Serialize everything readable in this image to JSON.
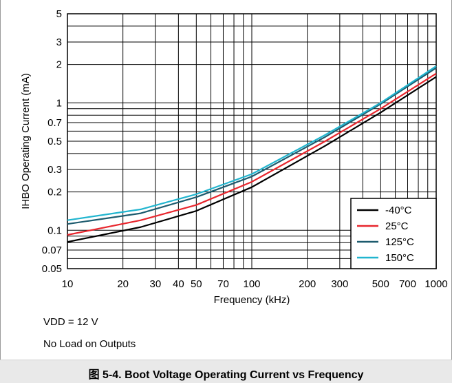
{
  "chart_data": {
    "type": "line",
    "xlabel": "Frequency (kHz)",
    "ylabel": "IHBO Operating Current (mA)",
    "xscale": "log",
    "yscale": "log",
    "xlim": [
      10,
      1000
    ],
    "ylim": [
      0.05,
      5
    ],
    "grid": true,
    "legend_position": "bottom-right",
    "x_ticks": [
      10,
      20,
      30,
      40,
      50,
      70,
      100,
      200,
      300,
      500,
      700,
      1000
    ],
    "x_tick_labels": [
      "10",
      "20",
      "30",
      "40",
      "50",
      "70",
      "100",
      "200",
      "300",
      "500",
      "700",
      "1000"
    ],
    "y_ticks": [
      0.05,
      0.07,
      0.1,
      0.2,
      0.3,
      0.5,
      0.7,
      1,
      2,
      3,
      5
    ],
    "y_tick_labels": [
      "0.05",
      "0.07",
      "0.1",
      "0.2",
      "0.3",
      "0.5",
      "0.7",
      "1",
      "2",
      "3",
      "5"
    ],
    "series": [
      {
        "name": "-40°C",
        "color": "#000000",
        "x": [
          10,
          25,
          50,
          100,
          250,
          500,
          1000
        ],
        "y": [
          0.081,
          0.106,
          0.142,
          0.218,
          0.46,
          0.84,
          1.6
        ]
      },
      {
        "name": "25°C",
        "color": "#e8262d",
        "x": [
          10,
          25,
          50,
          100,
          250,
          500,
          1000
        ],
        "y": [
          0.092,
          0.12,
          0.158,
          0.24,
          0.5,
          0.9,
          1.7
        ]
      },
      {
        "name": "125°C",
        "color": "#1d5b6e",
        "x": [
          10,
          25,
          50,
          100,
          250,
          500,
          1000
        ],
        "y": [
          0.112,
          0.136,
          0.182,
          0.264,
          0.54,
          0.98,
          1.88
        ]
      },
      {
        "name": "150°C",
        "color": "#21b5cf",
        "x": [
          10,
          25,
          50,
          100,
          250,
          500,
          1000
        ],
        "y": [
          0.12,
          0.146,
          0.192,
          0.276,
          0.56,
          1.0,
          1.94
        ]
      }
    ]
  },
  "notes": [
    "VDD = 12 V",
    "No Load on Outputs"
  ],
  "caption": "图 5-4. Boot Voltage Operating Current vs Frequency"
}
